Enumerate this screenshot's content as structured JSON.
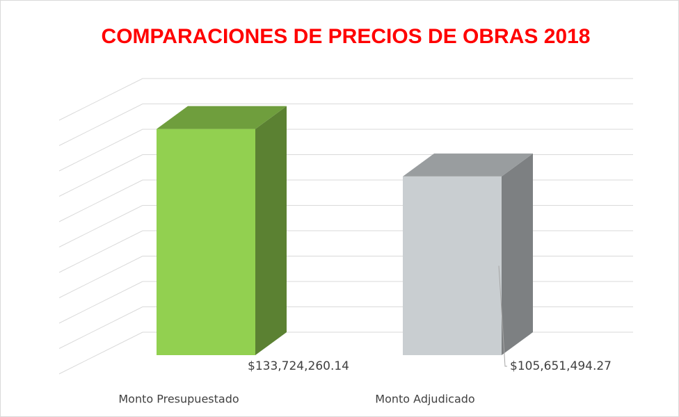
{
  "chart_data": {
    "type": "bar3d",
    "title": "COMPARACIONES DE PRECIOS DE OBRAS 2018",
    "categories": [
      "Monto Presupuestado",
      "Monto Adjudicado"
    ],
    "values": [
      133724260.14,
      105651494.27
    ],
    "value_labels": [
      "$133,724,260.14",
      "$105,651,494.27"
    ],
    "colors": [
      "#92d050",
      "#c9ced1"
    ],
    "ylim": [
      0,
      150000000
    ],
    "yticks": [
      0,
      15000000,
      30000000,
      45000000,
      60000000,
      75000000,
      90000000,
      105000000,
      120000000,
      135000000,
      150000000
    ],
    "grid": true
  }
}
